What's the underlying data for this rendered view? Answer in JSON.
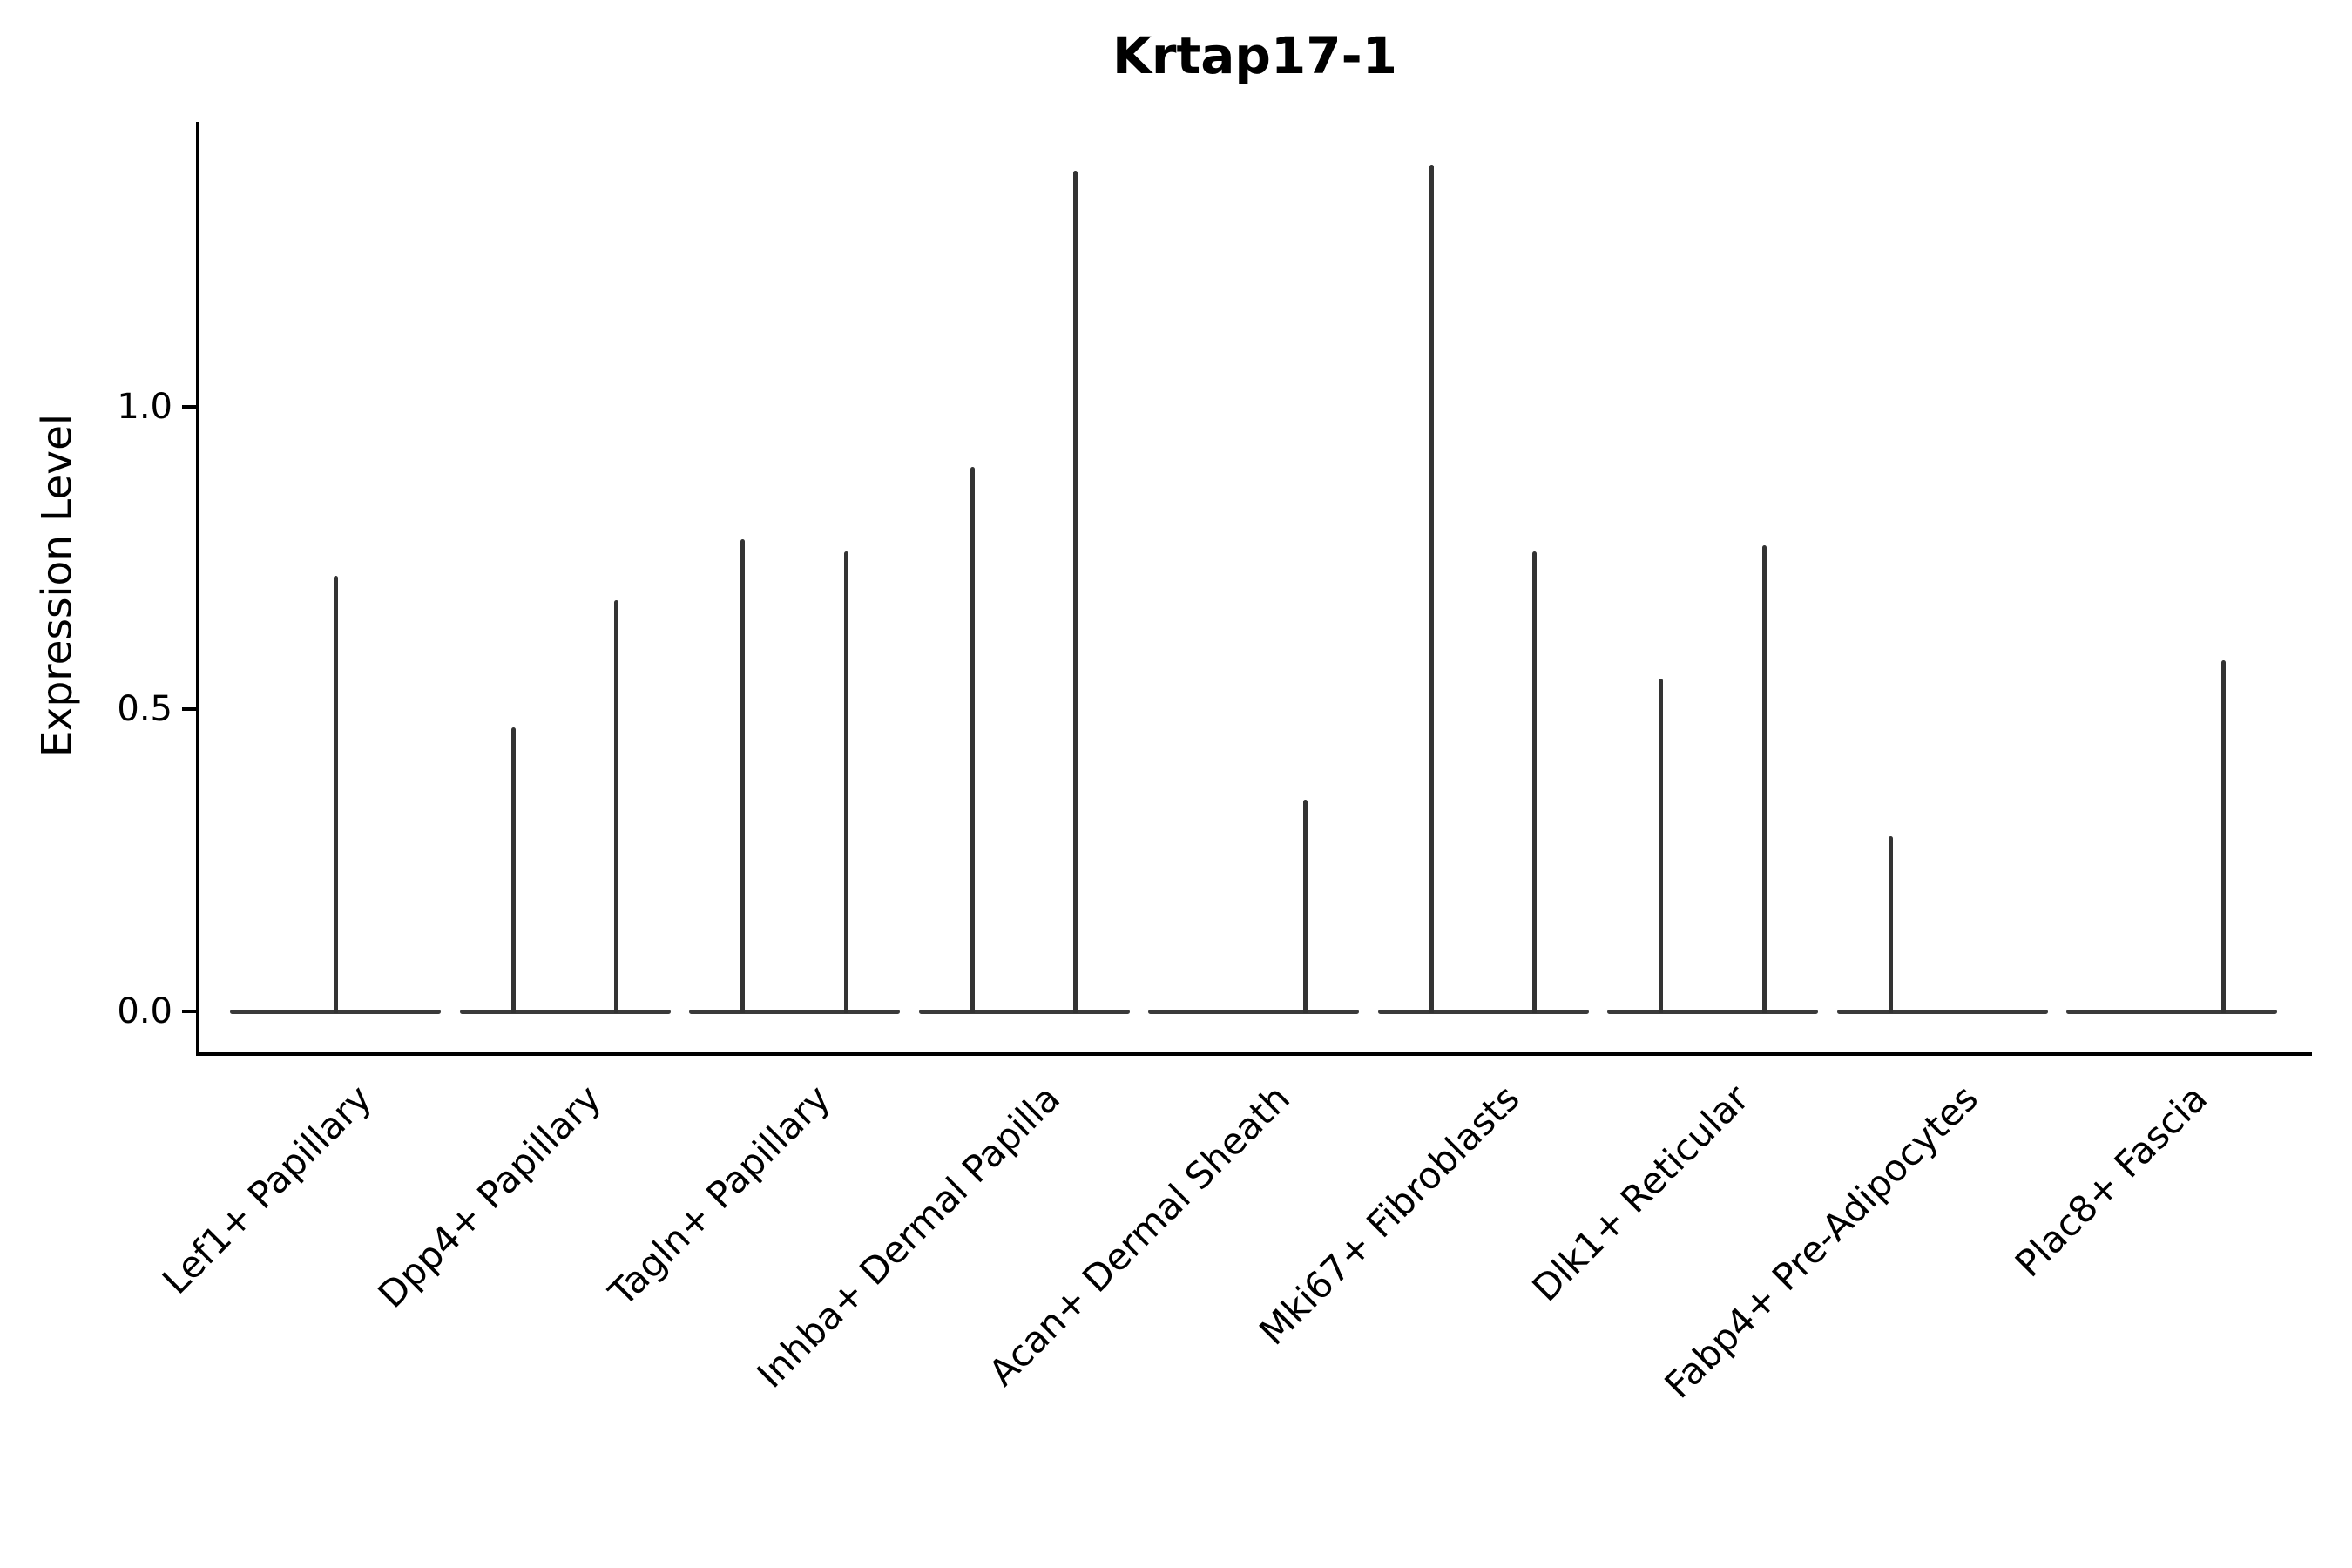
{
  "title": "Krtap17-1",
  "axes": {
    "y_label": "Expression Level",
    "x_label": ""
  },
  "colors": {
    "violin": "#333333",
    "spine": "#000000",
    "text": "#000000",
    "background": "#ffffff"
  },
  "chart_data": {
    "type": "violin",
    "title": "Krtap17-1",
    "ylabel": "Expression Level",
    "xlabel": "",
    "ylim": [
      -0.07,
      1.47
    ],
    "grid": false,
    "legend": "none",
    "y_ticks": [
      {
        "label": "0.0",
        "value": 0.0
      },
      {
        "label": "0.5",
        "value": 0.5
      },
      {
        "label": "1.0",
        "value": 1.0
      }
    ],
    "categories": [
      "Lef1+ Papillary",
      "Dpp4+ Papillary",
      "Tagln+ Papillary",
      "Inhba+ Dermal Papilla",
      "Acan+ Dermal Sheath",
      "Mki67+ Fibroblasts",
      "Dlk1+ Reticular",
      "Fabp4+ Pre-Adipocytes",
      "Plac8+ Fascia"
    ],
    "baseline_value": 0.0,
    "shape_note": "zero-inflated expression: each violin is a wide flat band at 0 with thin vertical density spikes rising to the max expressed value",
    "violins": [
      {
        "category": "Lef1+ Papillary",
        "spikes": [
          {
            "pos": "center",
            "max": 0.72
          }
        ]
      },
      {
        "category": "Dpp4+ Papillary",
        "spikes": [
          {
            "pos": "left",
            "max": 0.47
          },
          {
            "pos": "right",
            "max": 0.68
          }
        ]
      },
      {
        "category": "Tagln+ Papillary",
        "spikes": [
          {
            "pos": "left",
            "max": 0.78
          },
          {
            "pos": "right",
            "max": 0.76
          }
        ]
      },
      {
        "category": "Inhba+ Dermal Papilla",
        "spikes": [
          {
            "pos": "left",
            "max": 0.9
          },
          {
            "pos": "right",
            "max": 1.39
          }
        ]
      },
      {
        "category": "Acan+ Dermal Sheath",
        "spikes": [
          {
            "pos": "right",
            "max": 0.35
          }
        ]
      },
      {
        "category": "Mki67+ Fibroblasts",
        "spikes": [
          {
            "pos": "left",
            "max": 1.4
          },
          {
            "pos": "right",
            "max": 0.76
          }
        ]
      },
      {
        "category": "Dlk1+ Reticular",
        "spikes": [
          {
            "pos": "left",
            "max": 0.55
          },
          {
            "pos": "right",
            "max": 0.77
          }
        ]
      },
      {
        "category": "Fabp4+ Pre-Adipocytes",
        "spikes": [
          {
            "pos": "left",
            "max": 0.29
          }
        ]
      },
      {
        "category": "Plac8+ Fascia",
        "spikes": [
          {
            "pos": "right",
            "max": 0.58
          }
        ]
      }
    ]
  }
}
